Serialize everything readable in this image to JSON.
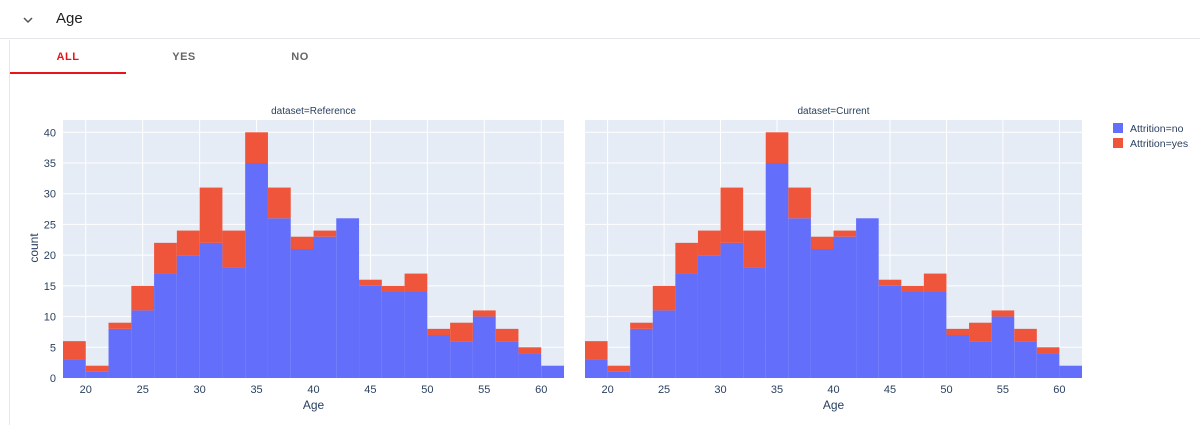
{
  "header": {
    "title": "Age",
    "toggle_icon": "chevron-down-icon"
  },
  "tabs": [
    {
      "label": "ALL",
      "active": true
    },
    {
      "label": "YES",
      "active": false
    },
    {
      "label": "NO",
      "active": false
    }
  ],
  "colors": {
    "no": "#636efa",
    "yes": "#ef553b",
    "plot_bg": "#e5ecf6",
    "accent": "#e7141a"
  },
  "chart_data": {
    "type": "bar",
    "barmode": "stack",
    "xlabel": "Age",
    "ylabel": "count",
    "ylim": [
      0,
      42
    ],
    "yticks": [
      0,
      5,
      10,
      15,
      20,
      25,
      30,
      35,
      40
    ],
    "xlim": [
      18,
      62
    ],
    "xticks": [
      20,
      25,
      30,
      35,
      40,
      45,
      50,
      55,
      60
    ],
    "bins": [
      [
        18,
        20
      ],
      [
        20,
        22
      ],
      [
        22,
        24
      ],
      [
        24,
        26
      ],
      [
        26,
        28
      ],
      [
        28,
        30
      ],
      [
        30,
        32
      ],
      [
        32,
        34
      ],
      [
        34,
        36
      ],
      [
        36,
        38
      ],
      [
        38,
        40
      ],
      [
        40,
        42
      ],
      [
        42,
        44
      ],
      [
        44,
        46
      ],
      [
        46,
        48
      ],
      [
        48,
        50
      ],
      [
        50,
        52
      ],
      [
        52,
        54
      ],
      [
        54,
        56
      ],
      [
        56,
        58
      ],
      [
        58,
        60
      ],
      [
        60,
        62
      ]
    ],
    "legend": {
      "position": "top-right",
      "entries": [
        "Attrition=no",
        "Attrition=yes"
      ]
    },
    "panels": [
      {
        "title": "dataset=Reference",
        "series": [
          {
            "name": "Attrition=no",
            "values": [
              3,
              1,
              8,
              11,
              17,
              20,
              22,
              18,
              35,
              26,
              21,
              23,
              26,
              15,
              14,
              14,
              7,
              6,
              10,
              6,
              4,
              2
            ]
          },
          {
            "name": "Attrition=yes",
            "values": [
              3,
              1,
              1,
              4,
              5,
              4,
              9,
              6,
              5,
              5,
              2,
              1,
              0,
              1,
              1,
              3,
              1,
              3,
              1,
              2,
              1,
              0
            ]
          }
        ]
      },
      {
        "title": "dataset=Current",
        "series": [
          {
            "name": "Attrition=no",
            "values": [
              3,
              1,
              8,
              11,
              17,
              20,
              22,
              18,
              35,
              26,
              21,
              23,
              26,
              15,
              14,
              14,
              7,
              6,
              10,
              6,
              4,
              2
            ]
          },
          {
            "name": "Attrition=yes",
            "values": [
              3,
              1,
              1,
              4,
              5,
              4,
              9,
              6,
              5,
              5,
              2,
              1,
              0,
              1,
              1,
              3,
              1,
              3,
              1,
              2,
              1,
              0
            ]
          }
        ]
      }
    ]
  }
}
